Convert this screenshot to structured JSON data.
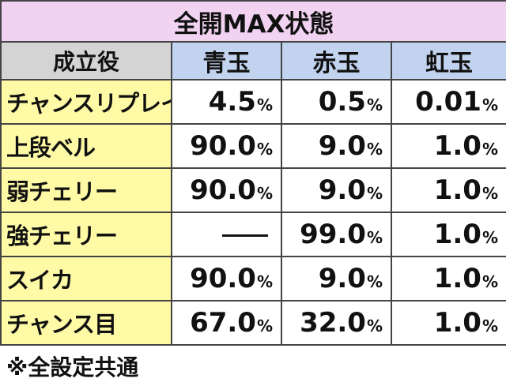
{
  "title": "全開MAX状態",
  "header": {
    "label": "成立役",
    "columns": [
      "青玉",
      "赤玉",
      "虹玉"
    ],
    "colors": {
      "title_bg": "#f1d3f1",
      "label_bg": "#d4d4d4",
      "column_bg": "#c2d3ef",
      "row_bg": "#fefaa5"
    }
  },
  "rows": [
    {
      "label": "チャンスリプレイ",
      "values": [
        "4.5",
        "0.5",
        "0.01"
      ]
    },
    {
      "label": "上段ベル",
      "values": [
        "90.0",
        "9.0",
        "1.0"
      ]
    },
    {
      "label": "弱チェリー",
      "values": [
        "90.0",
        "9.0",
        "1.0"
      ]
    },
    {
      "label": "強チェリー",
      "values": [
        "—",
        "99.0",
        "1.0"
      ]
    },
    {
      "label": "スイカ",
      "values": [
        "90.0",
        "9.0",
        "1.0"
      ]
    },
    {
      "label": "チャンス目",
      "values": [
        "67.0",
        "32.0",
        "1.0"
      ]
    }
  ],
  "unit": "%",
  "footnote": "※全設定共通"
}
